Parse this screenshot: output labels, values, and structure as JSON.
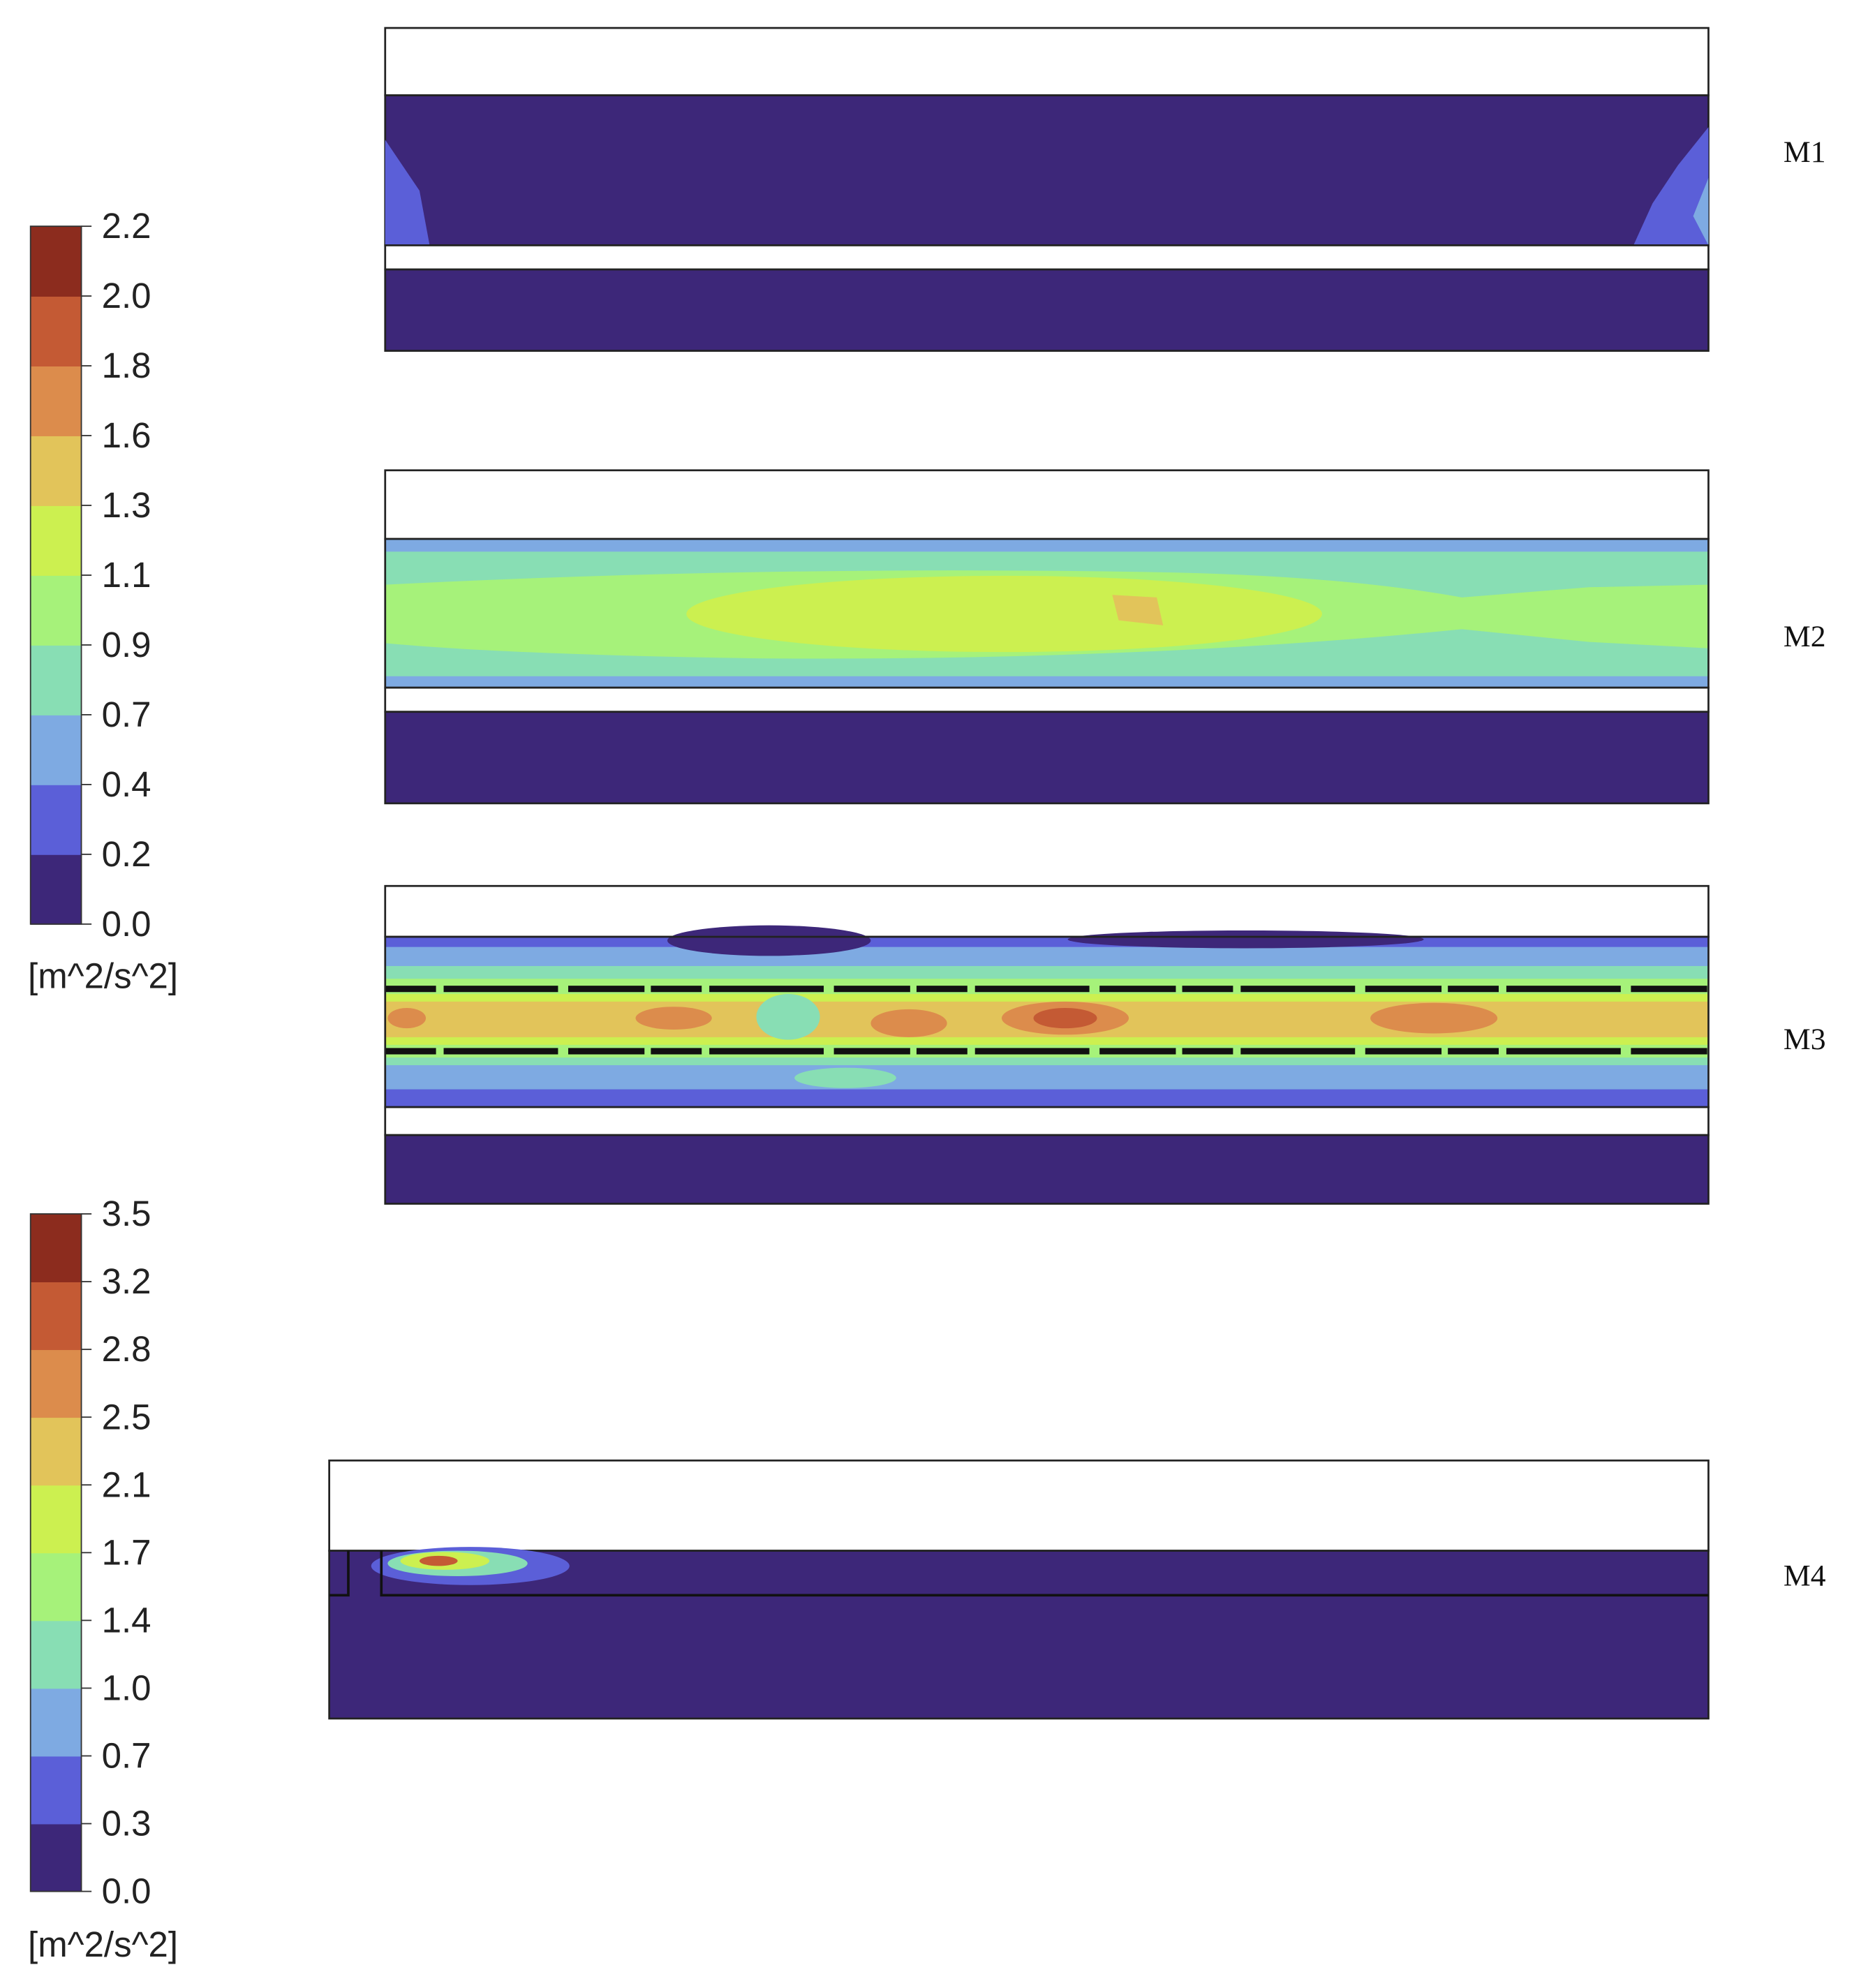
{
  "colorbars": [
    {
      "labels": [
        "2.2",
        "2.0",
        "1.8",
        "1.6",
        "1.3",
        "1.1",
        "0.9",
        "0.7",
        "0.4",
        "0.2",
        "0.0"
      ],
      "unit": "[m^2/s^2]"
    },
    {
      "labels": [
        "3.5",
        "3.2",
        "2.8",
        "2.5",
        "2.1",
        "1.7",
        "1.4",
        "1.0",
        "0.7",
        "0.3",
        "0.0"
      ],
      "unit": "[m^2/s^2]"
    }
  ],
  "colors": [
    "#3d2779",
    "#5b5fd8",
    "#7eaae2",
    "#88deb4",
    "#a6f27a",
    "#ccf050",
    "#e2c45a",
    "#dc8c4c",
    "#c45a34",
    "#8c2c1e"
  ],
  "panels": [
    {
      "label": "M1"
    },
    {
      "label": "M2"
    },
    {
      "label": "M3"
    },
    {
      "label": "M4"
    }
  ]
}
